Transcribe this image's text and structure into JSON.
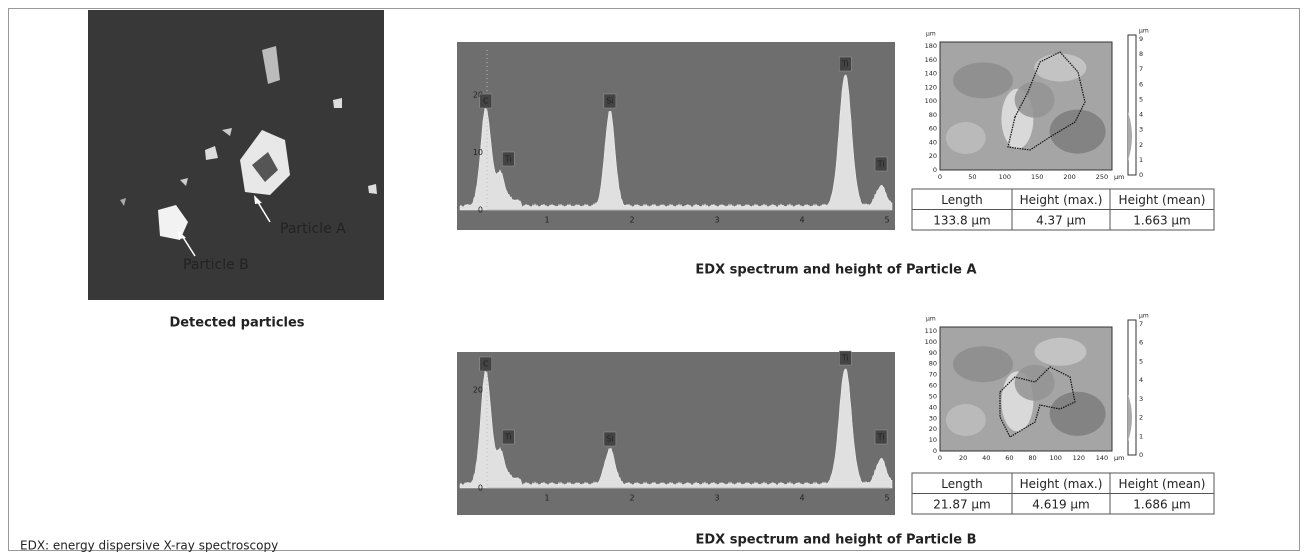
{
  "figure": {
    "sem": {
      "labels": [
        "Particle A",
        "Particle B"
      ],
      "caption": "Detected particles"
    },
    "particles": [
      {
        "spectrum": {
          "yticks": [
            "0",
            "10",
            "20"
          ],
          "xticks": [
            "1",
            "2",
            "3",
            "4",
            "5"
          ],
          "peaks": [
            "C",
            "Ti",
            "Si",
            "Ti",
            "Ti"
          ]
        },
        "height_map": {
          "unit": "µm",
          "yticks": [
            "0",
            "20",
            "40",
            "60",
            "80",
            "100",
            "120",
            "140",
            "160",
            "180"
          ],
          "xticks": [
            "0",
            "50",
            "100",
            "150",
            "200",
            "250"
          ],
          "x_unit": "µm",
          "colorbar_unit": "µm",
          "colorbar_ticks": [
            "0",
            "1",
            "2",
            "3",
            "4",
            "5",
            "6",
            "7",
            "8",
            "9"
          ]
        },
        "table": {
          "header": [
            "Length",
            "Height (max.)",
            "Height (mean)"
          ],
          "row": [
            "133.8 µm",
            "4.37 µm",
            "1.663 µm"
          ]
        },
        "caption": "EDX spectrum and height of Particle A"
      },
      {
        "spectrum": {
          "yticks": [
            "0",
            "20"
          ],
          "xticks": [
            "1",
            "2",
            "3",
            "4",
            "5"
          ],
          "peaks": [
            "C",
            "Ti",
            "Si",
            "Ti",
            "Ti"
          ]
        },
        "height_map": {
          "unit": "µm",
          "yticks": [
            "0",
            "10",
            "20",
            "30",
            "40",
            "50",
            "60",
            "70",
            "80",
            "90",
            "100",
            "110"
          ],
          "xticks": [
            "0",
            "20",
            "40",
            "60",
            "80",
            "100",
            "120",
            "140"
          ],
          "x_unit": "µm",
          "colorbar_unit": "µm",
          "colorbar_ticks": [
            "0",
            "1",
            "2",
            "3",
            "4",
            "5",
            "6",
            "7"
          ]
        },
        "table": {
          "header": [
            "Length",
            "Height (max.)",
            "Height (mean)"
          ],
          "row": [
            "21.87 µm",
            "4.619 µm",
            "1.686 µm"
          ]
        },
        "caption": "EDX spectrum and height of Particle B"
      }
    ],
    "footnote": "EDX: energy dispersive X-ray spectroscopy"
  }
}
